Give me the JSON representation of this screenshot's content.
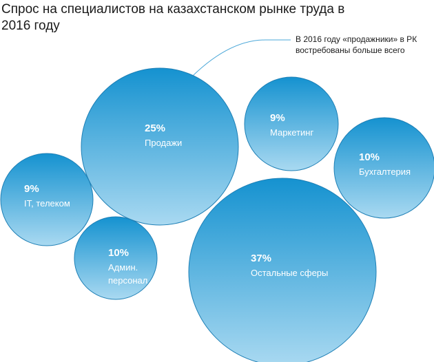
{
  "title": "Спрос на специалистов на казахстанском рынке труда в 2016 году",
  "callout": "В 2016 году «продажники» в РК востребованы больше всего",
  "chart_data": {
    "type": "bubble",
    "title": "Спрос на специалистов на казахстанском рынке труда в 2016 году",
    "unit": "%",
    "items": [
      {
        "label": "Продажи",
        "value": 25
      },
      {
        "label": "Маркетинг",
        "value": 9
      },
      {
        "label": "Бухгалтерия",
        "value": 10
      },
      {
        "label": "IT, телеком",
        "value": 9
      },
      {
        "label": "Админ. персонал",
        "value": 10
      },
      {
        "label": "Остальные сферы",
        "value": 37
      }
    ]
  },
  "colors": {
    "bubble_top": "#1592d0",
    "bubble_bottom": "#a9d9f1",
    "stroke": "#1e7fb5",
    "callout_line": "#4aa7d8"
  }
}
